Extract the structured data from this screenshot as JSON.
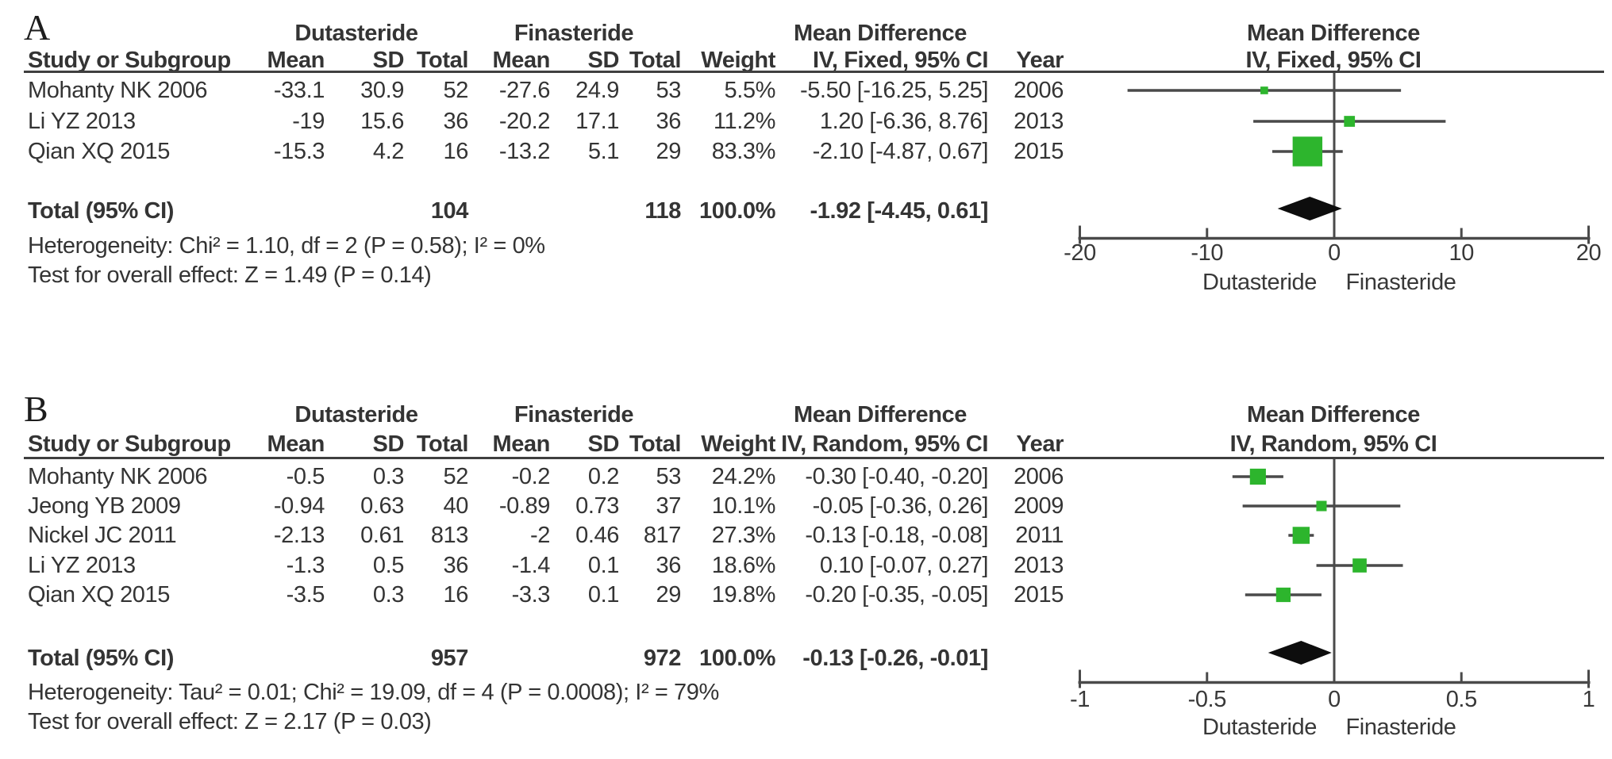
{
  "figure_type": "meta-analysis forest plot (two panels)",
  "colors": {
    "marker_green": "#2db52d",
    "diamond_black": "#0d0d0d",
    "line_gray": "#4a4a4a",
    "text": "#343434"
  },
  "chart_data": [
    {
      "type": "scatter",
      "subtype": "forest-plot",
      "label": "A",
      "group1_header": "Dutasteride",
      "group2_header": "Finasteride",
      "effect_header": "Mean Difference",
      "method_header": "IV, Fixed, 95% CI",
      "column_headers": {
        "study": "Study or Subgroup",
        "mean": "Mean",
        "sd": "SD",
        "total": "Total",
        "weight": "Weight",
        "year": "Year"
      },
      "studies": [
        {
          "name": "Mohanty NK 2006",
          "mean1": "-33.1",
          "sd1": "30.9",
          "total1": "52",
          "mean2": "-27.6",
          "sd2": "24.9",
          "total2": "53",
          "weight": "5.5%",
          "weight_pct": 5.5,
          "ci_text": "-5.50 [-16.25, 5.25]",
          "year": "2006",
          "estimate": -5.5,
          "ci_low": -16.25,
          "ci_high": 5.25
        },
        {
          "name": "Li YZ 2013",
          "mean1": "-19",
          "sd1": "15.6",
          "total1": "36",
          "mean2": "-20.2",
          "sd2": "17.1",
          "total2": "36",
          "weight": "11.2%",
          "weight_pct": 11.2,
          "ci_text": "1.20 [-6.36, 8.76]",
          "year": "2013",
          "estimate": 1.2,
          "ci_low": -6.36,
          "ci_high": 8.76
        },
        {
          "name": "Qian XQ 2015",
          "mean1": "-15.3",
          "sd1": "4.2",
          "total1": "16",
          "mean2": "-13.2",
          "sd2": "5.1",
          "total2": "29",
          "weight": "83.3%",
          "weight_pct": 83.3,
          "ci_text": "-2.10 [-4.87, 0.67]",
          "year": "2015",
          "estimate": -2.1,
          "ci_low": -4.87,
          "ci_high": 0.67
        }
      ],
      "total": {
        "label": "Total (95% CI)",
        "total1": "104",
        "total2": "118",
        "weight": "100.0%",
        "ci_text": "-1.92 [-4.45, 0.61]",
        "estimate": -1.92,
        "ci_low": -4.45,
        "ci_high": 0.61
      },
      "heterogeneity": "Heterogeneity: Chi² = 1.10, df = 2 (P = 0.58); I² = 0%",
      "overall_effect": "Test for overall effect: Z = 1.49 (P = 0.14)",
      "axis": {
        "min": -20,
        "max": 20,
        "ticks": [
          -20,
          -10,
          0,
          10,
          20
        ],
        "favours_left": "Dutasteride",
        "favours_right": "Finasteride"
      }
    },
    {
      "type": "scatter",
      "subtype": "forest-plot",
      "label": "B",
      "group1_header": "Dutasteride",
      "group2_header": "Finasteride",
      "effect_header": "Mean Difference",
      "method_header": "IV, Random, 95% CI",
      "column_headers": {
        "study": "Study or Subgroup",
        "mean": "Mean",
        "sd": "SD",
        "total": "Total",
        "weight": "Weight",
        "year": "Year"
      },
      "studies": [
        {
          "name": "Mohanty NK 2006",
          "mean1": "-0.5",
          "sd1": "0.3",
          "total1": "52",
          "mean2": "-0.2",
          "sd2": "0.2",
          "total2": "53",
          "weight": "24.2%",
          "weight_pct": 24.2,
          "ci_text": "-0.30 [-0.40, -0.20]",
          "year": "2006",
          "estimate": -0.3,
          "ci_low": -0.4,
          "ci_high": -0.2
        },
        {
          "name": "Jeong YB 2009",
          "mean1": "-0.94",
          "sd1": "0.63",
          "total1": "40",
          "mean2": "-0.89",
          "sd2": "0.73",
          "total2": "37",
          "weight": "10.1%",
          "weight_pct": 10.1,
          "ci_text": "-0.05 [-0.36, 0.26]",
          "year": "2009",
          "estimate": -0.05,
          "ci_low": -0.36,
          "ci_high": 0.26
        },
        {
          "name": "Nickel JC 2011",
          "mean1": "-2.13",
          "sd1": "0.61",
          "total1": "813",
          "mean2": "-2",
          "sd2": "0.46",
          "total2": "817",
          "weight": "27.3%",
          "weight_pct": 27.3,
          "ci_text": "-0.13 [-0.18, -0.08]",
          "year": "2011",
          "estimate": -0.13,
          "ci_low": -0.18,
          "ci_high": -0.08
        },
        {
          "name": "Li YZ 2013",
          "mean1": "-1.3",
          "sd1": "0.5",
          "total1": "36",
          "mean2": "-1.4",
          "sd2": "0.1",
          "total2": "36",
          "weight": "18.6%",
          "weight_pct": 18.6,
          "ci_text": "0.10 [-0.07, 0.27]",
          "year": "2013",
          "estimate": 0.1,
          "ci_low": -0.07,
          "ci_high": 0.27
        },
        {
          "name": "Qian XQ 2015",
          "mean1": "-3.5",
          "sd1": "0.3",
          "total1": "16",
          "mean2": "-3.3",
          "sd2": "0.1",
          "total2": "29",
          "weight": "19.8%",
          "weight_pct": 19.8,
          "ci_text": "-0.20 [-0.35, -0.05]",
          "year": "2015",
          "estimate": -0.2,
          "ci_low": -0.35,
          "ci_high": -0.05
        }
      ],
      "total": {
        "label": "Total (95% CI)",
        "total1": "957",
        "total2": "972",
        "weight": "100.0%",
        "ci_text": "-0.13 [-0.26, -0.01]",
        "estimate": -0.13,
        "ci_low": -0.26,
        "ci_high": -0.01
      },
      "heterogeneity": "Heterogeneity: Tau² = 0.01; Chi² = 19.09, df = 4 (P = 0.0008); I² = 79%",
      "overall_effect": "Test for overall effect: Z = 2.17 (P = 0.03)",
      "axis": {
        "min": -1,
        "max": 1,
        "ticks": [
          -1,
          -0.5,
          0,
          0.5,
          1
        ],
        "favours_left": "Dutasteride",
        "favours_right": "Finasteride"
      }
    }
  ]
}
